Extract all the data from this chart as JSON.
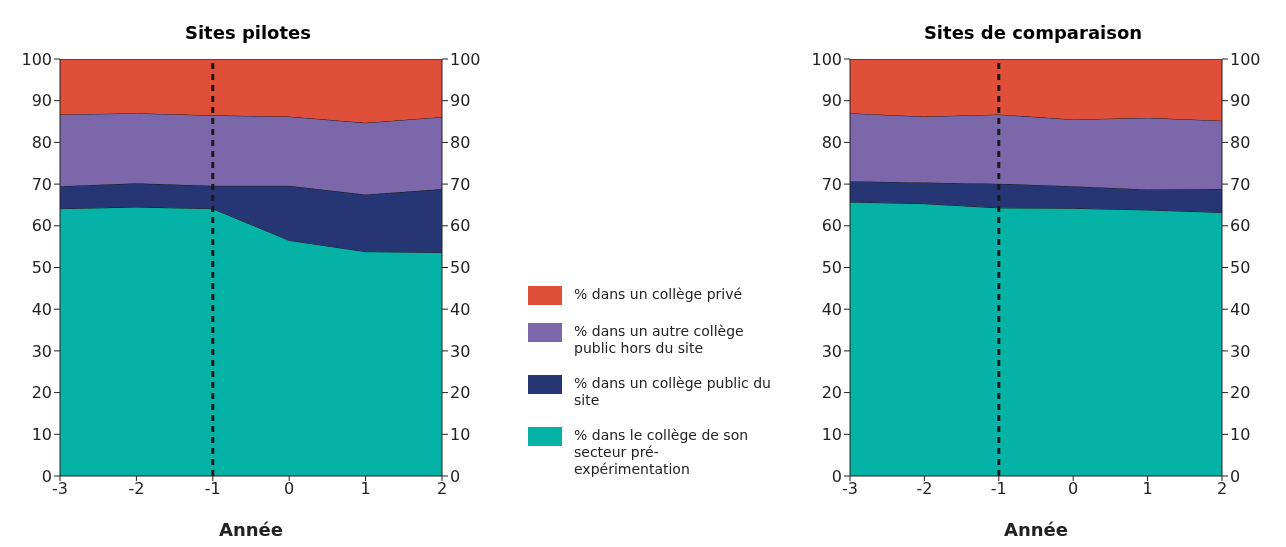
{
  "chart_data": [
    {
      "type": "area",
      "title": "Sites pilotes",
      "xlabel": "Année",
      "x": [
        -3,
        -2,
        -1,
        0,
        1,
        2
      ],
      "xlim": [
        -3,
        2
      ],
      "xticks": [
        -3,
        -2,
        -1,
        0,
        1,
        2
      ],
      "ylim": [
        0,
        100
      ],
      "yticks": [
        0,
        10,
        20,
        30,
        40,
        50,
        60,
        70,
        80,
        90,
        100
      ],
      "y2lim": [
        0,
        100
      ],
      "y2ticks": [
        0,
        10,
        20,
        30,
        40,
        50,
        60,
        70,
        80,
        90,
        100
      ],
      "stacked": true,
      "grid": false,
      "legend": "right",
      "ref_lines": [
        {
          "axis": "x",
          "value": -1,
          "line_style": "dashed",
          "color": "#1a1a1a"
        }
      ],
      "series": [
        {
          "name": "% dans le collège de son secteur pré-expérimentation",
          "color": "#05b2a6",
          "values": [
            64.1,
            64.5,
            64.1,
            56.5,
            53.8,
            53.6
          ]
        },
        {
          "name": "% dans un collège public du site",
          "color": "#263574",
          "values": [
            5.4,
            5.7,
            5.5,
            13.1,
            13.7,
            15.2
          ]
        },
        {
          "name": "% dans un autre collège public hors du site",
          "color": "#7b67aa",
          "values": [
            17.2,
            16.8,
            16.9,
            16.6,
            17.2,
            17.3
          ]
        },
        {
          "name": "% dans un collège privé",
          "color": "#e04f39",
          "values": [
            13.3,
            13.0,
            13.5,
            13.8,
            15.3,
            13.9
          ]
        }
      ]
    },
    {
      "type": "area",
      "title": "Sites de comparaison",
      "xlabel": "Année",
      "x": [
        -3,
        -2,
        -1,
        0,
        1,
        2
      ],
      "xlim": [
        -3,
        2
      ],
      "xticks": [
        -3,
        -2,
        -1,
        0,
        1,
        2
      ],
      "ylim": [
        0,
        100
      ],
      "yticks": [
        0,
        10,
        20,
        30,
        40,
        50,
        60,
        70,
        80,
        90,
        100
      ],
      "y2lim": [
        0,
        100
      ],
      "y2ticks": [
        0,
        10,
        20,
        30,
        40,
        50,
        60,
        70,
        80,
        90,
        100
      ],
      "stacked": true,
      "grid": false,
      "ref_lines": [
        {
          "axis": "x",
          "value": -1,
          "line_style": "dashed",
          "color": "#1a1a1a"
        }
      ],
      "series": [
        {
          "color": "#05b2a6",
          "values": [
            65.7,
            65.3,
            64.3,
            64.2,
            63.8,
            63.2
          ]
        },
        {
          "color": "#263574",
          "values": [
            5.0,
            5.1,
            5.8,
            5.3,
            4.9,
            5.6
          ]
        },
        {
          "color": "#7b67aa",
          "values": [
            16.3,
            15.8,
            16.6,
            16.0,
            17.2,
            16.4
          ]
        },
        {
          "color": "#e04f39",
          "values": [
            13.0,
            13.8,
            13.3,
            14.5,
            14.1,
            14.8
          ]
        }
      ]
    }
  ]
}
